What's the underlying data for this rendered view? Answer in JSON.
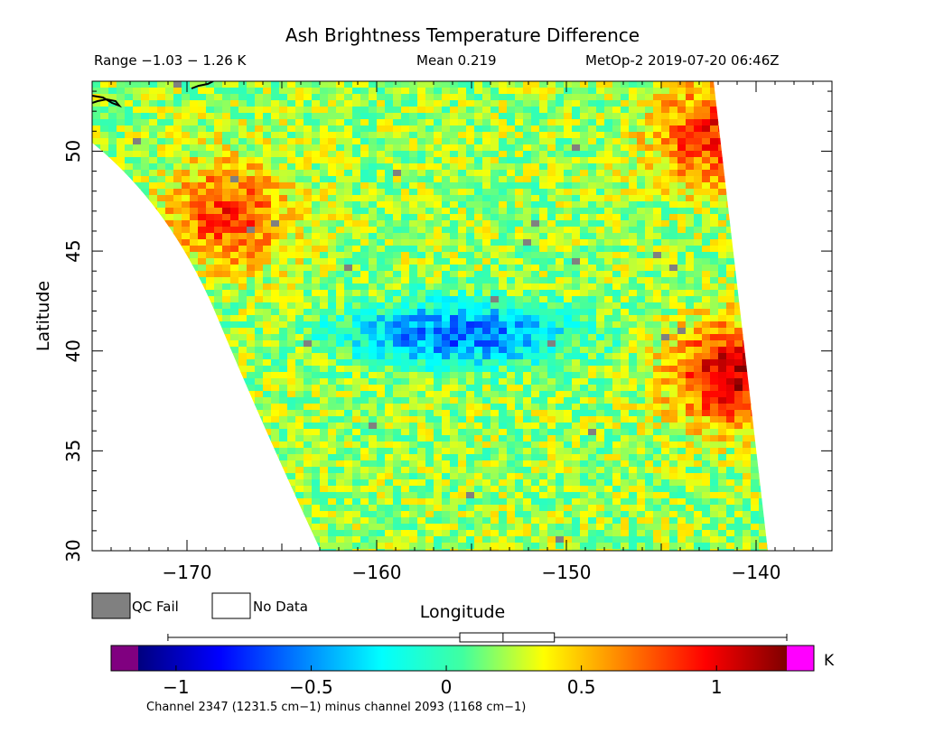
{
  "title": "Ash Brightness Temperature Difference",
  "header": {
    "range": "Range −1.03 − 1.26 K",
    "mean": "Mean 0.219",
    "satellite": "MetOp-2 2019-07-20 06:46Z"
  },
  "legend": {
    "qc_fail_label": "QC Fail",
    "no_data_label": "No Data",
    "qc_fail_color": "#808080",
    "no_data_color": "#ffffff"
  },
  "colorbar": {
    "unit_label": "K",
    "footnote": "Channel 2347 (1231.5 cm−1) minus channel 2093 (1168 cm−1)",
    "min": -1.14,
    "max": 1.26,
    "tick_values": [
      -1,
      -0.5,
      0,
      0.5,
      1
    ],
    "tick_labels": [
      "−1",
      "−0.5",
      "0",
      "0.5",
      "1"
    ],
    "under_color": "#800080",
    "over_color": "#ff00ff",
    "stats_box": {
      "whisker_min": -1.03,
      "q1": 0.05,
      "median": 0.21,
      "q3": 0.4,
      "whisker_max": 1.26
    }
  },
  "chart_data": {
    "type": "heatmap",
    "title": "Ash Brightness Temperature Difference",
    "xlabel": "Longitude",
    "ylabel": "Latitude",
    "xlim": [
      -175,
      -136
    ],
    "ylim": [
      30,
      53.5
    ],
    "x_ticks": [
      -170,
      -160,
      -150,
      -140
    ],
    "x_tick_labels": [
      "−170",
      "−160",
      "−150",
      "−140"
    ],
    "y_ticks": [
      30,
      35,
      40,
      45,
      50
    ],
    "y_tick_labels": [
      "30",
      "35",
      "40",
      "45",
      "50"
    ],
    "units": "K",
    "value_range": [
      -1.03,
      1.26
    ],
    "mean": 0.219,
    "swath_edges": {
      "west": [
        [
          -175,
          51.0
        ],
        [
          -172,
          49.0
        ],
        [
          -168.5,
          44.5
        ],
        [
          -165,
          40.0
        ],
        [
          -162.5,
          30.0
        ]
      ],
      "east": [
        [
          -142.5,
          53.5
        ],
        [
          -142.0,
          48.0
        ],
        [
          -141.0,
          40.0
        ],
        [
          -139.0,
          30.0
        ]
      ]
    },
    "features": [
      {
        "name": "warm region NW",
        "lon": -168,
        "lat": 47,
        "value": 0.85
      },
      {
        "name": "cold band",
        "lon": -156,
        "lat": 41,
        "value": -0.6
      },
      {
        "name": "warm region E",
        "lon": -141.5,
        "lat": 39,
        "value": 1.1
      },
      {
        "name": "warm strip NE",
        "lon": -142.5,
        "lat": 51,
        "value": 0.9
      },
      {
        "name": "background",
        "lon": -152,
        "lat": 36,
        "value": 0.2
      }
    ]
  }
}
